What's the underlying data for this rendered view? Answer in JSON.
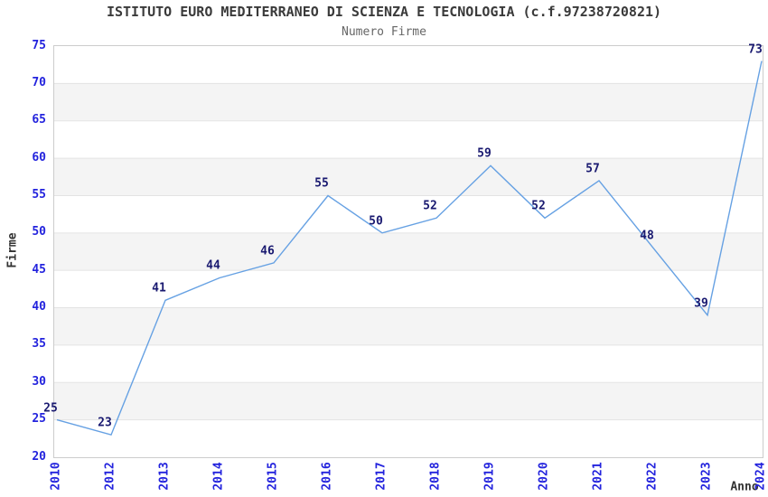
{
  "chart_data": {
    "type": "line",
    "title": "ISTITUTO EURO MEDITERRANEO DI SCIENZA E TECNOLOGIA (c.f.97238720821)",
    "subtitle": "Numero Firme",
    "xlabel": "Anno",
    "ylabel": "Firme",
    "categories": [
      "2010",
      "2012",
      "2013",
      "2014",
      "2015",
      "2016",
      "2017",
      "2018",
      "2019",
      "2020",
      "2021",
      "2022",
      "2023",
      "2024"
    ],
    "values": [
      25,
      23,
      41,
      44,
      46,
      55,
      50,
      52,
      59,
      52,
      57,
      48,
      39,
      73
    ],
    "y_ticks": [
      75,
      70,
      65,
      60,
      55,
      50,
      45,
      40,
      35,
      30,
      25,
      20
    ],
    "ylim": [
      20,
      75
    ],
    "ytick_step": 5,
    "legend": "none",
    "grid": "horizontal-bands",
    "data_labels_shown": true,
    "colors": {
      "line": "#66a1e3",
      "tick_labels": "#2323dd",
      "data_labels": "#191970",
      "band": "#f4f4f4",
      "gridline": "#e3e3e3",
      "plot_border": "#cccccc",
      "title": "#3a3a3a",
      "subtitle": "#666666",
      "axis_labels": "#333333",
      "background": "#ffffff"
    }
  }
}
